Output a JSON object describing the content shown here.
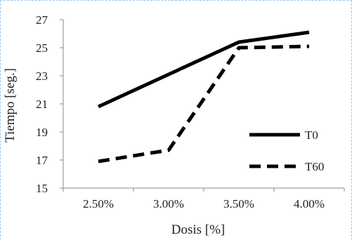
{
  "chart_data": {
    "type": "line",
    "title": "",
    "xlabel": "Dosis [%]",
    "ylabel": "Tiempo [seg.]",
    "categories": [
      "2.50%",
      "3.00%",
      "3.50%",
      "4.00%"
    ],
    "ylim": [
      15,
      27
    ],
    "yticks": [
      15,
      17,
      19,
      21,
      23,
      25,
      27
    ],
    "grid": false,
    "legend_position": "lower-right",
    "series": [
      {
        "name": "T0",
        "values": [
          20.8,
          23.1,
          25.4,
          26.1
        ],
        "style": "solid",
        "color": "#000000"
      },
      {
        "name": "T60",
        "values": [
          16.9,
          17.7,
          25.0,
          25.1
        ],
        "style": "dashed",
        "color": "#000000"
      }
    ]
  }
}
